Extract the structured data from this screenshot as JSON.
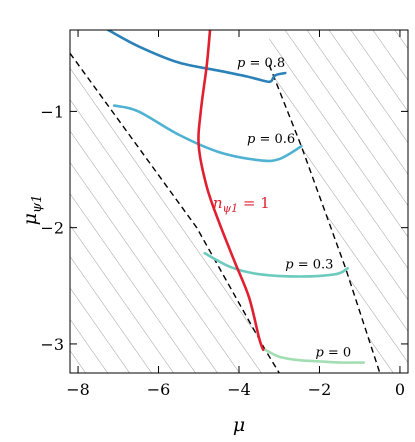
{
  "chart_data": {
    "type": "line",
    "xlabel": "μ",
    "ylabel": "μψ1",
    "ylabel_main": "μ",
    "ylabel_sub": "ψ1",
    "xlim": [
      -8.2,
      0.2
    ],
    "ylim": [
      -3.25,
      -0.3
    ],
    "xticks": [
      -8,
      -6,
      -4,
      -2,
      0
    ],
    "xtick_labels": [
      "−8",
      "−6",
      "−4",
      "−2",
      "0"
    ],
    "yticks": [
      -1,
      -2,
      -3
    ],
    "ytick_labels": [
      "−1",
      "−2",
      "−3"
    ],
    "grid": false,
    "hatched_regions": "left of left dashed boundary and right of right dashed boundary",
    "boundaries": [
      {
        "id": "left-boundary",
        "style": "dashed",
        "color": "#000000",
        "points": [
          [
            -8.2,
            -0.5
          ],
          [
            -5.05,
            -2.0
          ],
          [
            -3.35,
            -3.05
          ],
          [
            -3.0,
            -3.25
          ]
        ]
      },
      {
        "id": "right-boundary",
        "style": "dashed",
        "color": "#000000",
        "points": [
          [
            -3.25,
            -0.6
          ],
          [
            -2.45,
            -1.3
          ],
          [
            -1.35,
            -2.35
          ],
          [
            -0.5,
            -3.25
          ]
        ]
      }
    ],
    "series": [
      {
        "name": "p = 0.8",
        "color": "#2c82b8",
        "points": [
          [
            -7.25,
            -0.3
          ],
          [
            -6.5,
            -0.44
          ],
          [
            -5.5,
            -0.58
          ],
          [
            -4.5,
            -0.65
          ],
          [
            -3.8,
            -0.7
          ],
          [
            -3.35,
            -0.74
          ],
          [
            -3.2,
            -0.74
          ],
          [
            -3.1,
            -0.69
          ],
          [
            -2.85,
            -0.67
          ]
        ]
      },
      {
        "name": "p = 0.6",
        "color": "#4fb2d2",
        "points": [
          [
            -7.1,
            -0.95
          ],
          [
            -6.5,
            -1.0
          ],
          [
            -5.5,
            -1.2
          ],
          [
            -4.5,
            -1.35
          ],
          [
            -3.5,
            -1.42
          ],
          [
            -3.0,
            -1.41
          ],
          [
            -2.45,
            -1.3
          ]
        ]
      },
      {
        "name": "p = 0.3",
        "color": "#6ccbbe",
        "points": [
          [
            -4.85,
            -2.22
          ],
          [
            -4.2,
            -2.34
          ],
          [
            -3.5,
            -2.4
          ],
          [
            -2.5,
            -2.42
          ],
          [
            -1.6,
            -2.4
          ],
          [
            -1.3,
            -2.35
          ]
        ]
      },
      {
        "name": "p = 0",
        "color": "#a3ddb2",
        "points": [
          [
            -3.35,
            -3.05
          ],
          [
            -3.0,
            -3.11
          ],
          [
            -2.5,
            -3.14
          ],
          [
            -2.0,
            -3.15
          ],
          [
            -1.5,
            -3.16
          ],
          [
            -0.9,
            -3.16
          ]
        ]
      },
      {
        "name": "nψ1 = 1",
        "color": "#e02030",
        "points": [
          [
            -4.72,
            -0.3
          ],
          [
            -4.8,
            -0.6
          ],
          [
            -4.95,
            -1.0
          ],
          [
            -5.0,
            -1.3
          ],
          [
            -4.8,
            -1.65
          ],
          [
            -4.5,
            -1.95
          ],
          [
            -4.1,
            -2.3
          ],
          [
            -3.75,
            -2.6
          ],
          [
            -3.5,
            -2.95
          ],
          [
            -3.4,
            -3.05
          ]
        ]
      }
    ],
    "annotations": [
      {
        "id": "p08",
        "text": "p = 0.8",
        "x": -4.05,
        "y": -0.62,
        "color": "#000000"
      },
      {
        "id": "p06",
        "text": "p = 0.6",
        "x": -3.8,
        "y": -1.27,
        "color": "#000000"
      },
      {
        "id": "p03",
        "text": "p = 0.3",
        "x": -2.85,
        "y": -2.35,
        "color": "#000000"
      },
      {
        "id": "p0",
        "text": "p = 0",
        "x": -2.1,
        "y": -3.11,
        "color": "#000000"
      },
      {
        "id": "n1",
        "text": "nψ1 = 1",
        "main": "n",
        "sub": "ψ1",
        "suffix": " = 1",
        "x": -4.65,
        "y": -1.83,
        "color": "#e02030"
      }
    ]
  }
}
